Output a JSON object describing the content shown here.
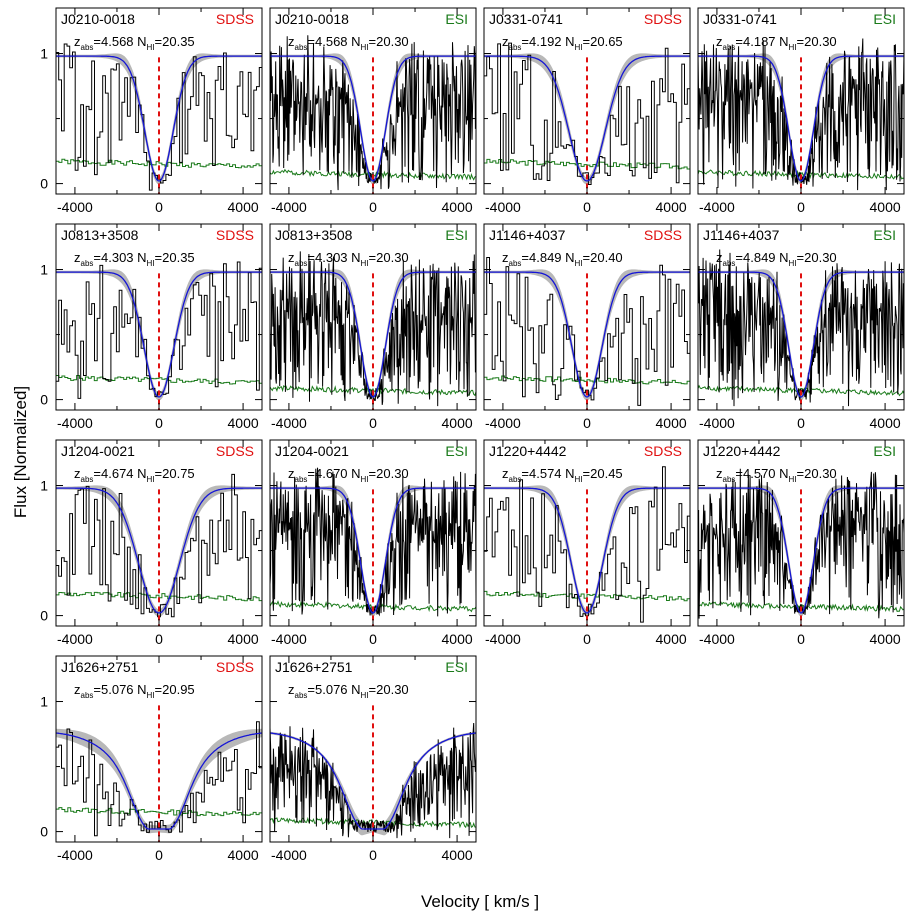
{
  "figure": {
    "ylabel": "Flux [Normalized]",
    "xlabel": "Velocity [ km/s ]"
  },
  "colors": {
    "data": "#000000",
    "error": "#1a7a1a",
    "model": "#1515d6",
    "model_band": "#b8b8b8",
    "marker": "#e01010",
    "sdss_label": "#e01010",
    "esi_label": "#1a7a1a"
  },
  "chart_data": [
    {
      "type": "line",
      "quasar": "J0210-0018",
      "instrument": "SDSS",
      "z_abs": "4.568",
      "N_HI": "20.35",
      "model_width": 900,
      "noise": 0.3,
      "kind": "sdss",
      "seed": 1
    },
    {
      "type": "line",
      "quasar": "J0210-0018",
      "instrument": "ESI",
      "z_abs": "4.568",
      "N_HI": "20.30",
      "model_width": 780,
      "noise": 0.35,
      "kind": "esi",
      "seed": 2
    },
    {
      "type": "line",
      "quasar": "J0331-0741",
      "instrument": "SDSS",
      "z_abs": "4.192",
      "N_HI": "20.65",
      "model_width": 1150,
      "noise": 0.3,
      "kind": "sdss",
      "seed": 3
    },
    {
      "type": "line",
      "quasar": "J0331-0741",
      "instrument": "ESI",
      "z_abs": "4.187",
      "N_HI": "20.30",
      "model_width": 780,
      "noise": 0.35,
      "kind": "esi",
      "seed": 4
    },
    {
      "type": "line",
      "quasar": "J0813+3508",
      "instrument": "SDSS",
      "z_abs": "4.303",
      "N_HI": "20.35",
      "model_width": 950,
      "noise": 0.3,
      "kind": "sdss",
      "seed": 5
    },
    {
      "type": "line",
      "quasar": "J0813+3508",
      "instrument": "ESI",
      "z_abs": "4.303",
      "N_HI": "20.30",
      "model_width": 780,
      "noise": 0.35,
      "kind": "esi",
      "seed": 6
    },
    {
      "type": "line",
      "quasar": "J1146+4037",
      "instrument": "SDSS",
      "z_abs": "4.849",
      "N_HI": "20.40",
      "model_width": 950,
      "noise": 0.3,
      "kind": "sdss",
      "seed": 7
    },
    {
      "type": "line",
      "quasar": "J1146+4037",
      "instrument": "ESI",
      "z_abs": "4.849",
      "N_HI": "20.30",
      "model_width": 780,
      "noise": 0.35,
      "kind": "esi",
      "seed": 8
    },
    {
      "type": "line",
      "quasar": "J1204-0021",
      "instrument": "SDSS",
      "z_abs": "4.674",
      "N_HI": "20.75",
      "model_width": 1300,
      "noise": 0.3,
      "kind": "sdss",
      "seed": 9
    },
    {
      "type": "line",
      "quasar": "J1204-0021",
      "instrument": "ESI",
      "z_abs": "4.670",
      "N_HI": "20.30",
      "model_width": 780,
      "noise": 0.35,
      "kind": "esi",
      "seed": 10
    },
    {
      "type": "line",
      "quasar": "J1220+4442",
      "instrument": "SDSS",
      "z_abs": "4.574",
      "N_HI": "20.45",
      "model_width": 1000,
      "noise": 0.3,
      "kind": "sdss",
      "seed": 11
    },
    {
      "type": "line",
      "quasar": "J1220+4442",
      "instrument": "ESI",
      "z_abs": "4.570",
      "N_HI": "20.30",
      "model_width": 780,
      "noise": 0.35,
      "kind": "esi",
      "seed": 12
    },
    {
      "type": "line",
      "quasar": "J1626+2751",
      "instrument": "SDSS",
      "z_abs": "5.076",
      "N_HI": "20.95",
      "model_width": 2200,
      "noise": 0.3,
      "kind": "sdss_wide",
      "seed": 13
    },
    {
      "type": "line",
      "quasar": "J1626+2751",
      "instrument": "ESI",
      "z_abs": "5.076",
      "N_HI": "20.30",
      "model_width": 780,
      "noise": 0.35,
      "kind": "esi_wide",
      "seed": 14
    }
  ],
  "axes": {
    "xlim": [
      -4900,
      4900
    ],
    "ylim": [
      -0.08,
      1.35
    ],
    "xticks": [
      -4000,
      0,
      4000
    ],
    "xtick_labels": [
      "-4000",
      "0",
      "4000"
    ],
    "yticks": [
      0,
      1
    ],
    "ytick_labels": [
      "0",
      "1"
    ]
  }
}
